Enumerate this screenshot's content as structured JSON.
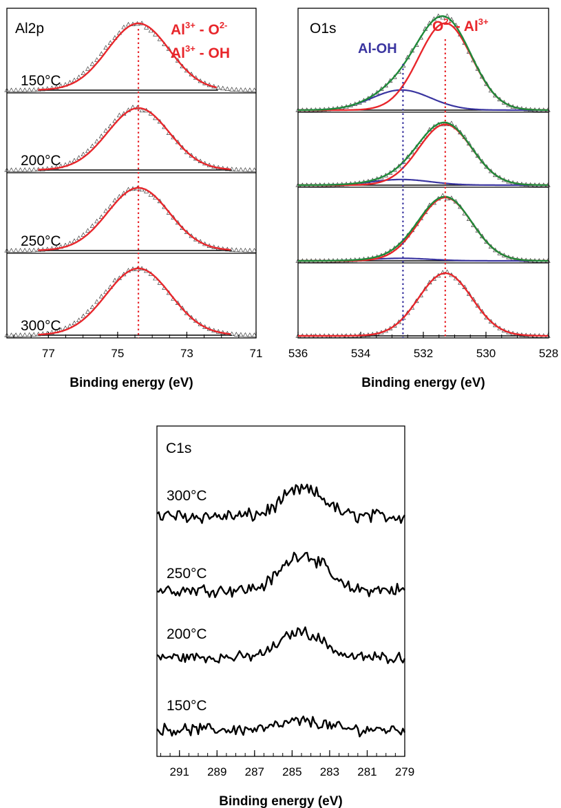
{
  "colors": {
    "fit": "#e8262b",
    "oh": "#3a35a0",
    "envelope": "#1f8a3a",
    "text_red": "#e8262b",
    "text_blue": "#3a35a0",
    "data": "#000000"
  },
  "chart_data": [
    {
      "type": "line",
      "title": "Al2p",
      "xlabel": "Binding energy (eV)",
      "xlim": [
        78.2,
        71
      ],
      "x_reversed": true,
      "xticks": [
        77,
        75,
        73,
        71
      ],
      "xtick_labels": [
        "77",
        "75",
        "73",
        "71"
      ],
      "y_axis_labels": false,
      "reference_line_ev": 74.4,
      "annotations": [
        {
          "base": "Al",
          "sup": "3+",
          "text": " - O",
          "sup2": "2-"
        },
        {
          "base": "Al",
          "sup": "3+",
          "text": " - OH"
        }
      ],
      "stack": [
        "150°C",
        "200°C",
        "250°C",
        "300°C"
      ],
      "series": [
        {
          "name": "150°C",
          "peak_ev": 74.4,
          "fwhm_ev": 2.1,
          "amplitude": 1.0
        },
        {
          "name": "200°C",
          "peak_ev": 74.4,
          "fwhm_ev": 2.1,
          "amplitude": 1.0
        },
        {
          "name": "250°C",
          "peak_ev": 74.4,
          "fwhm_ev": 2.1,
          "amplitude": 1.0
        },
        {
          "name": "300°C",
          "peak_ev": 74.4,
          "fwhm_ev": 2.2,
          "amplitude": 1.0
        }
      ]
    },
    {
      "type": "line",
      "title": "O1s",
      "xlabel": "Binding energy (eV)",
      "xlim": [
        536,
        528
      ],
      "x_reversed": true,
      "xticks": [
        536,
        534,
        532,
        530,
        528
      ],
      "xtick_labels": [
        "536",
        "534",
        "532",
        "530",
        "528"
      ],
      "y_axis_labels": false,
      "reference_lines_ev": [
        {
          "ev": 532.65,
          "color": "oh"
        },
        {
          "ev": 531.3,
          "color": "fit"
        }
      ],
      "annotations": [
        {
          "label": "Al-OH",
          "color": "oh"
        },
        {
          "base": "O",
          "sup": "2-",
          "text": " - Al",
          "sup2": "3+",
          "color": "fit"
        }
      ],
      "stack": [
        "150°C",
        "200°C",
        "250°C",
        "300°C"
      ],
      "series": [
        {
          "name": "150°C",
          "o_peak_ev": 531.3,
          "o_amp": 0.95,
          "oh_peak_ev": 532.7,
          "oh_amp": 0.22,
          "fwhm_ev": 2.0
        },
        {
          "name": "200°C",
          "o_peak_ev": 531.3,
          "o_amp": 0.97,
          "oh_peak_ev": 532.7,
          "oh_amp": 0.09,
          "fwhm_ev": 2.0
        },
        {
          "name": "250°C",
          "o_peak_ev": 531.3,
          "o_amp": 1.0,
          "oh_peak_ev": 532.7,
          "oh_amp": 0.04,
          "fwhm_ev": 2.0
        },
        {
          "name": "300°C",
          "o_peak_ev": 531.3,
          "o_amp": 1.0,
          "oh_peak_ev": 532.7,
          "oh_amp": 0.0,
          "fwhm_ev": 2.0
        }
      ]
    },
    {
      "type": "line",
      "title": "C1s",
      "xlabel": "Binding energy (eV)",
      "xlim": [
        292.2,
        279
      ],
      "x_reversed": true,
      "xticks": [
        291,
        289,
        287,
        285,
        283,
        281,
        279
      ],
      "xtick_labels": [
        "291",
        "289",
        "287",
        "285",
        "283",
        "281",
        "279"
      ],
      "y_axis_labels": false,
      "stack": [
        "300°C",
        "250°C",
        "200°C",
        "150°C"
      ],
      "series": [
        {
          "name": "300°C",
          "peak_ev": 284.5,
          "peak_height": 0.55,
          "noise": 0.22
        },
        {
          "name": "250°C",
          "peak_ev": 284.5,
          "peak_height": 0.65,
          "noise": 0.18
        },
        {
          "name": "200°C",
          "peak_ev": 284.6,
          "peak_height": 0.5,
          "noise": 0.16
        },
        {
          "name": "150°C",
          "peak_ev": 284.5,
          "peak_height": 0.2,
          "noise": 0.22
        }
      ]
    }
  ]
}
